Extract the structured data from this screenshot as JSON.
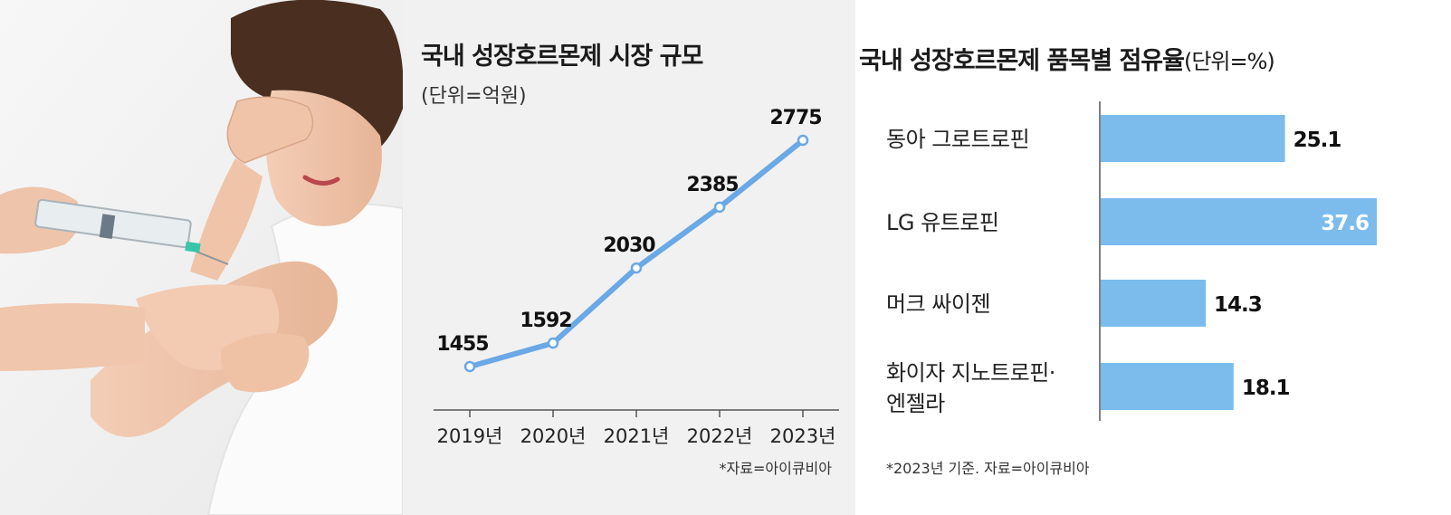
{
  "colors": {
    "line": "#6aa8e6",
    "bar": "#7bbcec",
    "panel_bg": "#f1f1f1",
    "axis": "#555555"
  },
  "line_panel": {
    "title": "국내 성장호르몬제 시장 규모",
    "subtitle": "(단위=억원)",
    "source": "*자료=아이큐비아"
  },
  "bar_panel": {
    "title": "국내 성장호르몬제 품목별 점유율",
    "unit": "(단위=%)",
    "source": "*2023년 기준. 자료=아이큐비아"
  },
  "chart_data": [
    {
      "type": "line",
      "title": "국내 성장호르몬제 시장 규모",
      "ylabel": "(단위=억원)",
      "categories": [
        "2019년",
        "2020년",
        "2021년",
        "2022년",
        "2023년"
      ],
      "values": [
        1455,
        1592,
        2030,
        2385,
        2775
      ],
      "data_labels": [
        "1455",
        "1592",
        "2030",
        "2385",
        "2775"
      ],
      "ylim": [
        1200,
        2900
      ],
      "grid": false
    },
    {
      "type": "bar",
      "orientation": "horizontal",
      "title": "국내 성장호르몬제 품목별 점유율",
      "unit": "(단위=%)",
      "categories": [
        [
          "동아 그로트로핀"
        ],
        [
          "LG 유트로핀"
        ],
        [
          "머크 싸이젠"
        ],
        [
          "화이자 지노트로핀·",
          "엔젤라"
        ]
      ],
      "values": [
        25.1,
        37.6,
        14.3,
        18.1
      ],
      "data_labels": [
        "25.1",
        "37.6",
        "14.3",
        "18.1"
      ],
      "xlim": [
        0,
        37.6
      ],
      "grid": false
    }
  ]
}
